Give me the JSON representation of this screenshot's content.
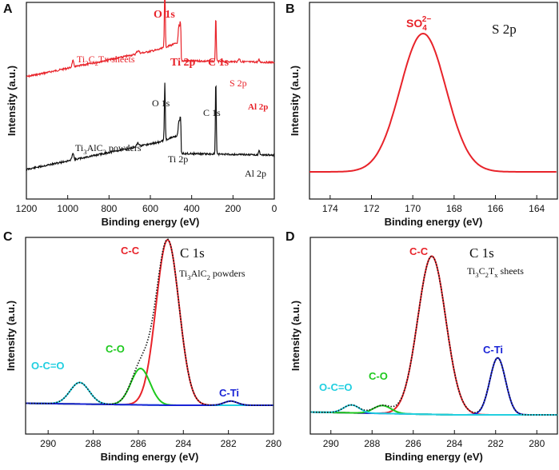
{
  "chart_data": [
    {
      "panel": "A",
      "type": "line",
      "xlabel": "Binding energy (eV)",
      "ylabel": "Intensity (a.u.)",
      "xlim": [
        1200,
        0
      ],
      "xticks": [
        "1200",
        "1000",
        "800",
        "600",
        "400",
        "200",
        "0"
      ],
      "series": [
        {
          "name": "Ti3C2Tx sheets",
          "color": "#e8232a",
          "label_parts": [
            "Ti",
            "3",
            "C",
            "2",
            "Tx sheets"
          ],
          "peaks": [
            {
              "label": "O 1s",
              "x": 530
            },
            {
              "label": "Ti 2p",
              "x": 455
            },
            {
              "label": "C 1s",
              "x": 283
            },
            {
              "label": "S 2p",
              "x": 170
            },
            {
              "label": "Al 2p",
              "x": 74
            }
          ]
        },
        {
          "name": "Ti3AlC2 powders",
          "color": "#111111",
          "label_parts": [
            "Ti",
            "3",
            "AlC",
            "2",
            " powders"
          ],
          "peaks": [
            {
              "label": "O 1s",
              "x": 530
            },
            {
              "label": "Ti 2p",
              "x": 455
            },
            {
              "label": "C 1s",
              "x": 283
            },
            {
              "label": "Al 2p",
              "x": 74
            }
          ]
        }
      ]
    },
    {
      "panel": "B",
      "type": "line",
      "title": "S 2p",
      "xlabel": "Binding energy (eV)",
      "ylabel": "Intensity (a.u.)",
      "xlim": [
        175,
        163
      ],
      "xticks": [
        "174",
        "172",
        "170",
        "168",
        "166",
        "164"
      ],
      "annotation": {
        "base": "SO",
        "sub": "4",
        "sup": "2−"
      },
      "series": [
        {
          "name": "S 2p",
          "color": "#e8232a",
          "peak_center": 169.5,
          "fwhm": 2.6
        }
      ]
    },
    {
      "panel": "C",
      "type": "line",
      "title": "C 1s",
      "subtitle_parts": [
        "Ti",
        "3",
        "AlC",
        "2",
        " powders"
      ],
      "xlabel": "Binding energy (eV)",
      "ylabel": "Intensity (a.u.)",
      "xlim": [
        291,
        280
      ],
      "xticks": [
        "290",
        "288",
        "286",
        "284",
        "282",
        "280"
      ],
      "components": [
        {
          "name": "C-C",
          "color": "#e8232a",
          "center": 284.7,
          "amplitude": 1.0,
          "fwhm": 1.2
        },
        {
          "name": "C-O",
          "color": "#1ec91e",
          "center": 285.9,
          "amplitude": 0.22,
          "fwhm": 1.0
        },
        {
          "name": "O-C=O",
          "color": "#22cfe0",
          "center": 288.6,
          "amplitude": 0.13,
          "fwhm": 1.0
        },
        {
          "name": "C-Ti",
          "color": "#1a24d6",
          "center": 281.9,
          "amplitude": 0.025,
          "fwhm": 0.7
        }
      ]
    },
    {
      "panel": "D",
      "type": "line",
      "title": "C 1s",
      "subtitle_parts": [
        "Ti",
        "3",
        "C",
        "2",
        "T",
        "x",
        " sheets"
      ],
      "xlabel": "Binding energy (eV)",
      "ylabel": "Intensity (a.u.)",
      "xlim": [
        291,
        279
      ],
      "xticks": [
        "290",
        "288",
        "286",
        "284",
        "282",
        "280"
      ],
      "components": [
        {
          "name": "C-C",
          "color": "#e8232a",
          "center": 285.1,
          "amplitude": 1.0,
          "fwhm": 1.6
        },
        {
          "name": "C-Ti",
          "color": "#1a24d6",
          "center": 281.9,
          "amplitude": 0.36,
          "fwhm": 0.9
        },
        {
          "name": "C-O",
          "color": "#1ec91e",
          "center": 287.5,
          "amplitude": 0.05,
          "fwhm": 1.0
        },
        {
          "name": "O-C=O",
          "color": "#22cfe0",
          "center": 289.0,
          "amplitude": 0.05,
          "fwhm": 0.9
        }
      ]
    }
  ]
}
